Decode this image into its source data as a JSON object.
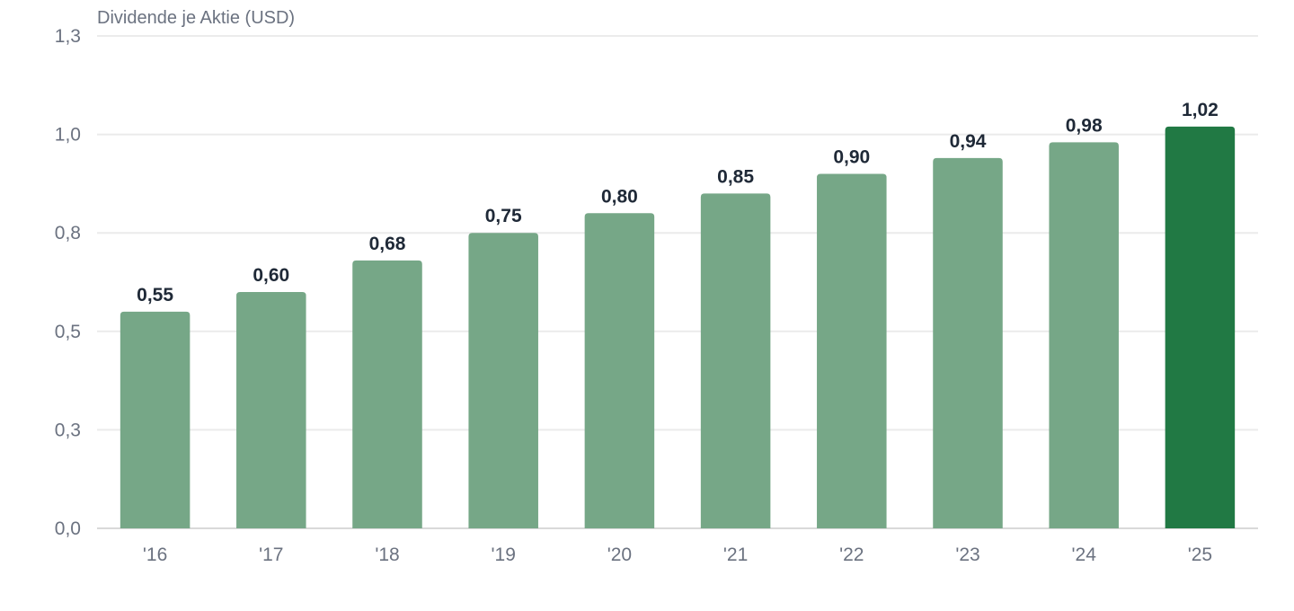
{
  "chart_data": {
    "type": "bar",
    "ylabel": "Dividende je Aktie (USD)",
    "categories": [
      "'16",
      "'17",
      "'18",
      "'19",
      "'20",
      "'21",
      "'22",
      "'23",
      "'24",
      "'25"
    ],
    "values": [
      0.55,
      0.6,
      0.68,
      0.75,
      0.8,
      0.85,
      0.9,
      0.94,
      0.98,
      1.02
    ],
    "data_labels": [
      "0,55",
      "0,60",
      "0,68",
      "0,75",
      "0,80",
      "0,85",
      "0,90",
      "0,94",
      "0,98",
      "1,02"
    ],
    "yticks": [
      0.0,
      0.25,
      0.5,
      0.75,
      1.0,
      1.25
    ],
    "ytick_labels": [
      "0,0",
      "0,3",
      "0,5",
      "0,8",
      "1,0",
      "1,3"
    ],
    "ylim": [
      0,
      1.25
    ],
    "grid": true,
    "colors": {
      "bar": "#76a787",
      "highlight": "#217944"
    },
    "highlight_index": 9
  }
}
